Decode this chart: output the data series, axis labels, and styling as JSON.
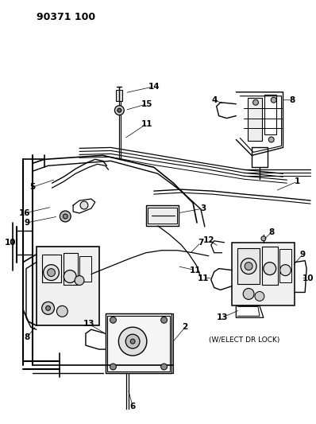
{
  "title_code": "90371 100",
  "background_color": "#ffffff",
  "text_color": "#000000",
  "annotation_text": "(W/ELECT DR LOCK)"
}
